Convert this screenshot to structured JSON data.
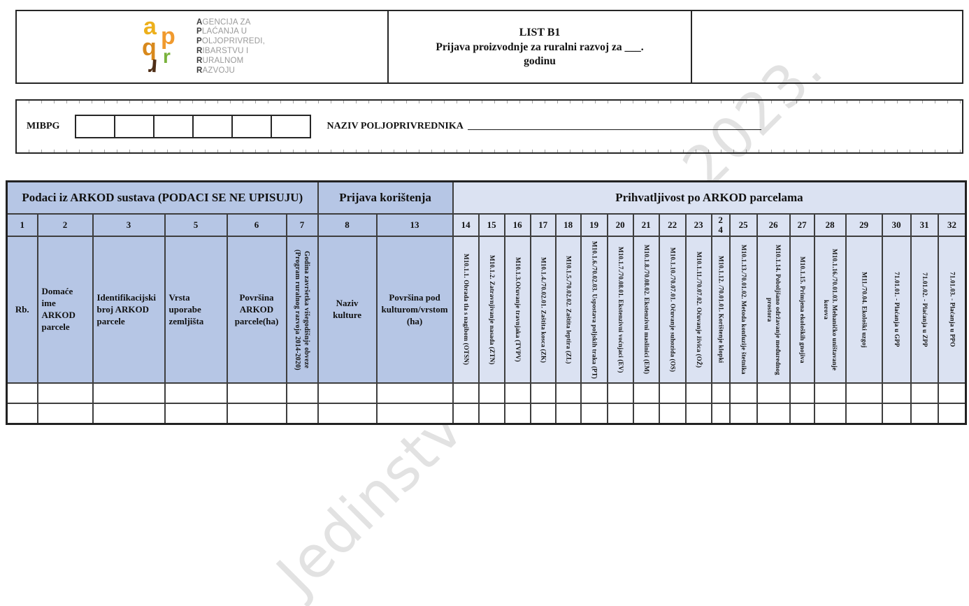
{
  "watermark": {
    "text": "Jedinstveni zahtjev 2023.",
    "color": "#e2e2e2"
  },
  "logo": {
    "letters": [
      {
        "char": "a",
        "color": "#edb01c"
      },
      {
        "char": "p",
        "color": "#f09a2e"
      },
      {
        "char": "q",
        "color": "#d8891c"
      },
      {
        "char": "r",
        "color": "#79b23b"
      },
      {
        "char": "r",
        "color": "#4f2e16"
      }
    ],
    "org_lines": [
      {
        "initial": "A",
        "rest": "GENCIJA ZA"
      },
      {
        "initial": "P",
        "rest": "LAĆANJA U"
      },
      {
        "initial": "P",
        "rest": "OLJOPRIVREDI,"
      },
      {
        "initial": "R",
        "rest": "IBARSTVU I"
      },
      {
        "initial": "R",
        "rest": "URALNOM"
      },
      {
        "initial": "R",
        "rest": "AZVOJU"
      }
    ]
  },
  "header": {
    "title_line1": "LIST B1",
    "title_line2": "Prijava proizvodnje za ruralni razvoj za ___.",
    "title_line3": "godinu"
  },
  "farmer": {
    "mibpg_label": "MIBPG",
    "mibpg_cells": 6,
    "name_label": "NAZIV POLJOPRIVREDNIKA",
    "name_underline": "____________________________________________________________"
  },
  "table": {
    "groups": [
      {
        "label": "Podaci iz ARKOD sustava (PODACI SE NE UPISUJU)",
        "span": 6
      },
      {
        "label": "Prijava korištenja",
        "span": 2
      },
      {
        "label": "Prihvatljivost po ARKOD parcelama",
        "span": 19
      }
    ],
    "columns": [
      {
        "num": "1",
        "header": "Rb."
      },
      {
        "num": "2",
        "header": "Domaće ime ARKOD parcele"
      },
      {
        "num": "3",
        "header": "Identifikacijski broj ARKOD parcele"
      },
      {
        "num": "5",
        "header": "Vrsta uporabe zemljišta"
      },
      {
        "num": "6",
        "header": "Površina ARKOD parcele(ha)"
      },
      {
        "num": "7",
        "header": "Godina završetka višegodišnje obveze (Program ruralnog razvoja 2014-2020)"
      },
      {
        "num": "8",
        "header": "Naziv kulture"
      },
      {
        "num": "13",
        "header": "Površina pod kulturom/vrstom (ha)"
      },
      {
        "num": "14",
        "header": "M10.1.1. Obrada tla s nagibom (OTSN)"
      },
      {
        "num": "15",
        "header": "M10.1.2. Zatravnjivanje nasada (ZTN)"
      },
      {
        "num": "16",
        "header": "M10.1.3.Očuvanje travnjaka (TVPV)"
      },
      {
        "num": "17",
        "header": "M10.1.4./70.02.01. Zaštita kosca (ZK)"
      },
      {
        "num": "18",
        "header": "M10.1.5./70.02.02. Zaštita leptira (ZL)"
      },
      {
        "num": "19",
        "header": "M10.1.6./70.02.03. Uspostava poljskih traka (PT)"
      },
      {
        "num": "20",
        "header": "M10.1.7./70.08.01. Ekstenzivni voćnjaci (EV)"
      },
      {
        "num": "21",
        "header": "M10.1.8./70.08.02. Ekstenzivni maslinici (EM)"
      },
      {
        "num": "22",
        "header": "M10.1.10./70.07.01. Očuvanje suhozida (OS)"
      },
      {
        "num": "23",
        "header": "M10.1.11./70.07.02. Očuvanje živica (OŽ)"
      },
      {
        "num": "24",
        "header": "M10.1.12. /70.01.01. Korištenje klopki"
      },
      {
        "num": "25",
        "header": "M10.1.13./70.01.02. Metoda konfuzije štetnika"
      },
      {
        "num": "26",
        "header": "M10.1.14. Poboljšano održavanje međurednog prostora"
      },
      {
        "num": "27",
        "header": "M10.1.15. Primjena ekoloških gnojiva"
      },
      {
        "num": "28",
        "header": "M10.1.16./70.01.03. Mehaničko uništavanje korova"
      },
      {
        "num": "29",
        "header": "M11./70.04. Ekološki uzgoj"
      },
      {
        "num": "30",
        "header": "71.01.01. - Plaćanja u GPP"
      },
      {
        "num": "31",
        "header": "71.01.02. - Plaćanja u ZPP"
      },
      {
        "num": "32",
        "header": "71.01.03. - Plaćanja u PPO"
      }
    ],
    "empty_data_rows": 2,
    "colors": {
      "header_dark": "#b6c6e5",
      "header_light": "#dbe2f2"
    }
  }
}
